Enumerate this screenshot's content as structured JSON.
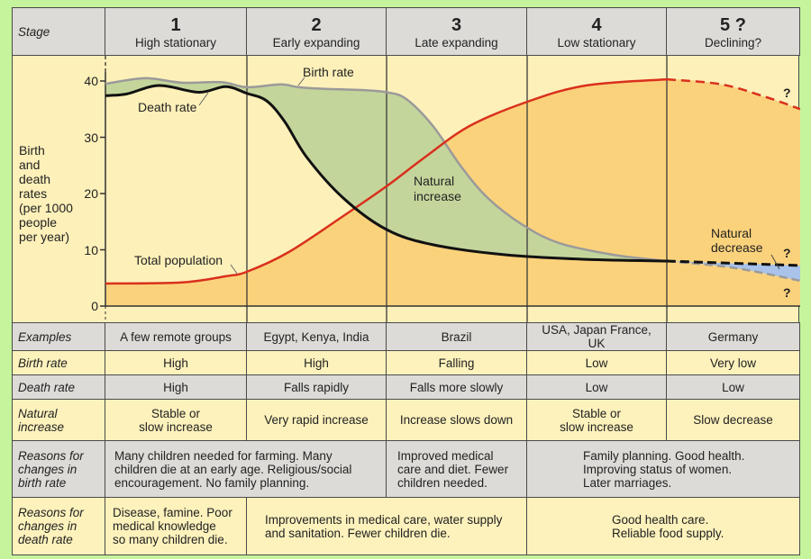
{
  "header": {
    "label": "Stage",
    "stages": [
      {
        "number": "1",
        "name": "High stationary"
      },
      {
        "number": "2",
        "name": "Early expanding"
      },
      {
        "number": "3",
        "name": "Late expanding"
      },
      {
        "number": "4",
        "name": "Low stationary"
      },
      {
        "number": "5 ?",
        "name": "Declining?"
      }
    ]
  },
  "chart_data": {
    "type": "line",
    "ylabel": [
      "Birth",
      "and",
      "death",
      "rates",
      "(per 1000",
      "people",
      "per year)"
    ],
    "ylim": [
      0,
      40
    ],
    "yticks": [
      "0",
      "10",
      "20",
      "30",
      "40"
    ],
    "x_units": "stage",
    "series": [
      {
        "name": "Birth rate",
        "color": "#9a9a9a",
        "points": [
          [
            0,
            39.5
          ],
          [
            0.28,
            40.5
          ],
          [
            0.54,
            39.7
          ],
          [
            0.82,
            39.8
          ],
          [
            1,
            38.9
          ],
          [
            1.24,
            39.4
          ],
          [
            1.37,
            38.9
          ],
          [
            1.56,
            38.6
          ],
          [
            1.82,
            38.4
          ],
          [
            2,
            38
          ],
          [
            2.14,
            36.8
          ],
          [
            2.33,
            32
          ],
          [
            2.53,
            24.8
          ],
          [
            2.72,
            19.2
          ],
          [
            2.97,
            14.4
          ],
          [
            3.23,
            11.2
          ],
          [
            3.62,
            9.1
          ],
          [
            4,
            8
          ]
        ],
        "projected": [
          [
            4,
            8
          ],
          [
            4.5,
            6.8
          ],
          [
            5,
            4.5
          ]
        ]
      },
      {
        "name": "Death rate",
        "color": "#111111",
        "points": [
          [
            0,
            37.4
          ],
          [
            0.15,
            37.7
          ],
          [
            0.38,
            39.2
          ],
          [
            0.66,
            38
          ],
          [
            0.85,
            39
          ],
          [
            1,
            37.8
          ],
          [
            1.14,
            36.5
          ],
          [
            1.27,
            32.8
          ],
          [
            1.43,
            26.4
          ],
          [
            1.69,
            19.2
          ],
          [
            2,
            13.6
          ],
          [
            2.33,
            10.9
          ],
          [
            2.85,
            9.1
          ],
          [
            3.42,
            8.3
          ],
          [
            4,
            8
          ]
        ],
        "projected": [
          [
            4,
            8
          ],
          [
            5,
            7.2
          ]
        ]
      },
      {
        "name": "Total population",
        "color": "#d9301c",
        "points": [
          [
            0,
            4
          ],
          [
            0.54,
            4.2
          ],
          [
            0.85,
            5.3
          ],
          [
            1,
            6.1
          ],
          [
            1.3,
            9.6
          ],
          [
            1.69,
            16
          ],
          [
            2,
            21.3
          ],
          [
            2.27,
            26.4
          ],
          [
            2.59,
            32
          ],
          [
            3,
            36.3
          ],
          [
            3.42,
            39.2
          ],
          [
            4,
            40.3
          ]
        ],
        "projected": [
          [
            4,
            40.3
          ],
          [
            4.41,
            39.4
          ],
          [
            4.75,
            37.1
          ],
          [
            5,
            35
          ]
        ]
      }
    ],
    "annotations": {
      "birth_rate": "Birth rate",
      "death_rate": "Death rate",
      "total_population": "Total population",
      "natural_increase": [
        "Natural",
        "increase"
      ],
      "natural_decrease": [
        "Natural",
        "decrease"
      ],
      "question": "?"
    },
    "colors": {
      "background": "#fdf0b9",
      "population_fill": "#fbd27c",
      "natural_increase_fill": "#c4d59b",
      "natural_decrease_fill": "#a9c3ea"
    }
  },
  "table": {
    "examples": {
      "label": "Examples",
      "cells": [
        "A few remote groups",
        "Egypt, Kenya, India",
        "Brazil",
        "USA, Japan France, UK",
        "Germany"
      ]
    },
    "birth_rate": {
      "label": "Birth rate",
      "cells": [
        "High",
        "High",
        "Falling",
        "Low",
        "Very low"
      ]
    },
    "death_rate": {
      "label": "Death rate",
      "cells": [
        "High",
        "Falls rapidly",
        "Falls more slowly",
        "Low",
        "Low"
      ]
    },
    "natural_increase": {
      "label": [
        "Natural",
        "increase"
      ],
      "cells": [
        [
          "Stable or",
          "slow increase"
        ],
        [
          "Very rapid increase"
        ],
        [
          "Increase slows down"
        ],
        [
          "Stable or",
          "slow increase"
        ],
        [
          "Slow decrease"
        ]
      ]
    },
    "reasons_birth": {
      "label": [
        "Reasons for",
        "changes in",
        "birth rate"
      ],
      "cells": [
        [
          "Many children needed for farming. Many",
          "children die at an early age. Religious/social",
          "encouragement. No family planning."
        ],
        [
          "Improved medical",
          "care and diet. Fewer",
          "children needed."
        ],
        [
          "Family planning. Good health.",
          "Improving status of women.",
          "Later marriages."
        ]
      ]
    },
    "reasons_death": {
      "label": [
        "Reasons for",
        "changes in",
        "death rate"
      ],
      "cells": [
        [
          "Disease, famine. Poor",
          "medical knowledge",
          "so many children die."
        ],
        [
          "Improvements in medical care, water supply",
          "and sanitation. Fewer children die."
        ],
        [
          "Good health care.",
          "Reliable food supply."
        ]
      ]
    }
  }
}
